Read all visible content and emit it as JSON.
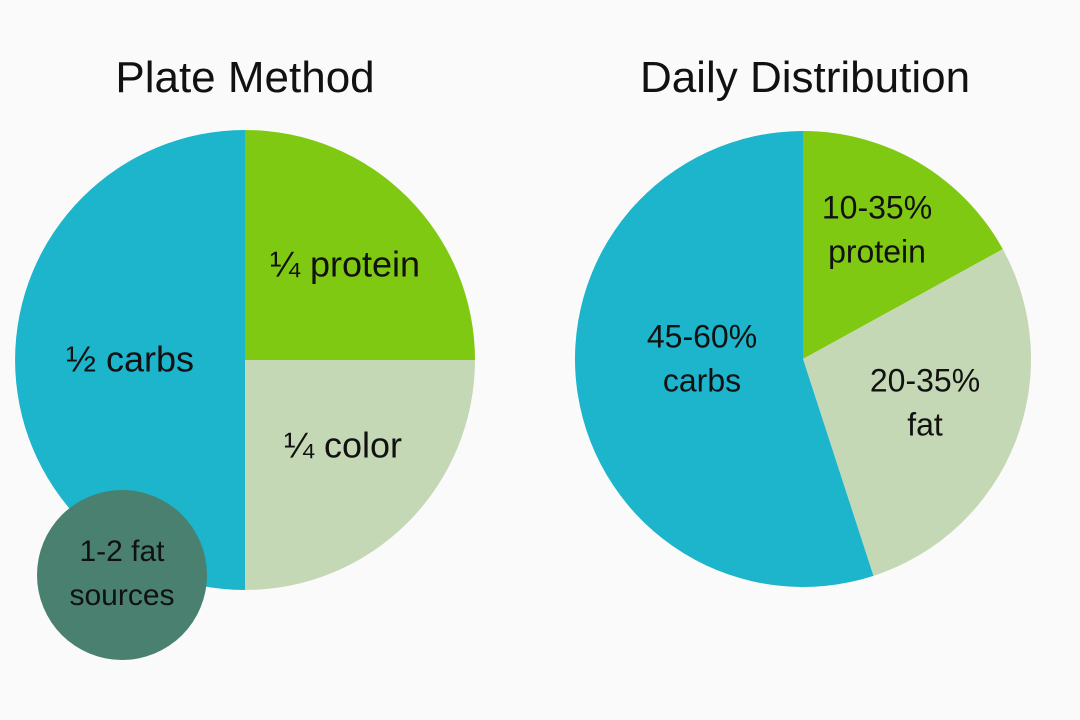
{
  "colors": {
    "carbs": "#1cb5cc",
    "protein": "#80c912",
    "color_fat": "#c5d8b5",
    "fat_sources": "#4a806f",
    "text": "#111111"
  },
  "chart_data": [
    {
      "type": "pie",
      "title": "Plate Method",
      "slices": [
        {
          "key": "protein",
          "label_lines": [
            "¼ protein"
          ],
          "value": 25,
          "color_key": "protein"
        },
        {
          "key": "color",
          "label_lines": [
            "¼ color"
          ],
          "value": 25,
          "color_key": "color_fat"
        },
        {
          "key": "carbs",
          "label_lines": [
            "½ carbs"
          ],
          "value": 50,
          "color_key": "carbs"
        }
      ],
      "annotation": {
        "label_lines": [
          "1-2 fat",
          "sources"
        ],
        "color_key": "fat_sources"
      }
    },
    {
      "type": "pie",
      "title": "Daily Distribution",
      "slices": [
        {
          "key": "protein",
          "label_lines": [
            "10-35%",
            "protein"
          ],
          "value": 17,
          "color_key": "protein"
        },
        {
          "key": "fat",
          "label_lines": [
            "20-35%",
            "fat"
          ],
          "value": 28,
          "color_key": "color_fat"
        },
        {
          "key": "carbs",
          "label_lines": [
            "45-60%",
            "carbs"
          ],
          "value": 55,
          "color_key": "carbs"
        }
      ]
    }
  ]
}
